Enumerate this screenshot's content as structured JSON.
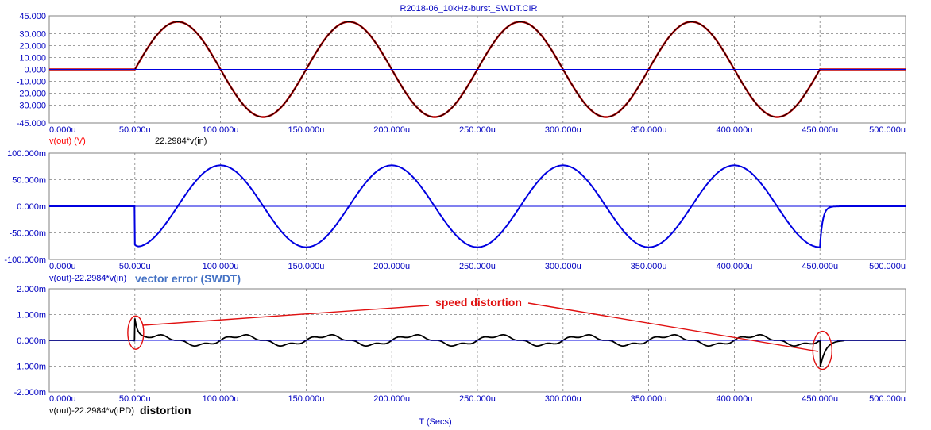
{
  "title": "R2018-06_10kHz-burst_SWDT.CIR",
  "xlabel": "T (Secs)",
  "colors": {
    "red": "#c00000",
    "blue": "#0000e0",
    "black": "#000000",
    "grid": "#808080",
    "tick": "#0000c0",
    "annot_red": "#e01010",
    "annot_blue": "#4472c4"
  },
  "chart_data": [
    {
      "type": "line",
      "x_range": [
        0,
        500
      ],
      "x_unit": "u",
      "x_ticks": [
        "0.000u",
        "50.000u",
        "100.000u",
        "150.000u",
        "200.000u",
        "250.000u",
        "300.000u",
        "350.000u",
        "400.000u",
        "450.000u",
        "500.000u"
      ],
      "ylim": [
        -45,
        45
      ],
      "y_ticks": [
        "45.000",
        "30.000",
        "20.000",
        "10.000",
        "0.000",
        "-10.000",
        "-20.000",
        "-30.000",
        "-45.000"
      ],
      "y_tick_values": [
        45,
        30,
        20,
        10,
        0,
        -10,
        -20,
        -30,
        -45
      ],
      "grid": true,
      "series": [
        {
          "name": "v(out) (V)",
          "color": "#c00000",
          "shape": "burst",
          "burst_start": 50,
          "burst_end": 450,
          "frequency_khz": 10,
          "amplitude": 40
        },
        {
          "name": "22.2984*v(in)",
          "color": "#000000",
          "shape": "burst",
          "burst_start": 50,
          "burst_end": 450,
          "frequency_khz": 10,
          "amplitude": 40
        },
        {
          "name": "",
          "color": "#0000e0",
          "shape": "zero",
          "value": 0
        }
      ]
    },
    {
      "type": "line",
      "x_range": [
        0,
        500
      ],
      "x_unit": "u",
      "x_ticks": [
        "0.000u",
        "50.000u",
        "100.000u",
        "150.000u",
        "200.000u",
        "250.000u",
        "300.000u",
        "350.000u",
        "400.000u",
        "450.000u",
        "500.000u"
      ],
      "ylim": [
        -100,
        100
      ],
      "y_ticks": [
        "100.000m",
        "50.000m",
        "0.000m",
        "-50.000m",
        "-100.000m"
      ],
      "y_tick_values": [
        100,
        50,
        0,
        -50,
        -100
      ],
      "grid": true,
      "annotation": "vector error (SWDT)",
      "series": [
        {
          "name": "v(out)-22.2984*v(in)",
          "color": "#0000e0",
          "shape": "error",
          "burst_start": 50,
          "burst_end": 450,
          "frequency_khz": 10,
          "amplitude": 77,
          "onset_peak": -72,
          "end_peak": -76
        },
        {
          "name": "",
          "color": "#0000e0",
          "shape": "zero",
          "value": 0
        }
      ]
    },
    {
      "type": "line",
      "x_range": [
        0,
        500
      ],
      "x_unit": "u",
      "x_ticks": [
        "0.000u",
        "50.000u",
        "100.000u",
        "150.000u",
        "200.000u",
        "250.000u",
        "300.000u",
        "350.000u",
        "400.000u",
        "450.000u",
        "500.000u"
      ],
      "ylim": [
        -2,
        2
      ],
      "y_ticks": [
        "2.000m",
        "1.000m",
        "0.000m",
        "-1.000m",
        "-2.000m"
      ],
      "y_tick_values": [
        2,
        1,
        0,
        -1,
        -2
      ],
      "grid": true,
      "annotation": "distortion",
      "callout": "speed distortion",
      "series": [
        {
          "name": "v(out)-22.2984*v(tPD)",
          "color": "#000000",
          "shape": "distortion",
          "burst_start": 50,
          "burst_end": 450,
          "spike_start": 0.85,
          "spike_end": -1.1,
          "ripple": 0.18
        },
        {
          "name": "",
          "color": "#0000e0",
          "shape": "zero",
          "value": 0
        }
      ]
    }
  ]
}
